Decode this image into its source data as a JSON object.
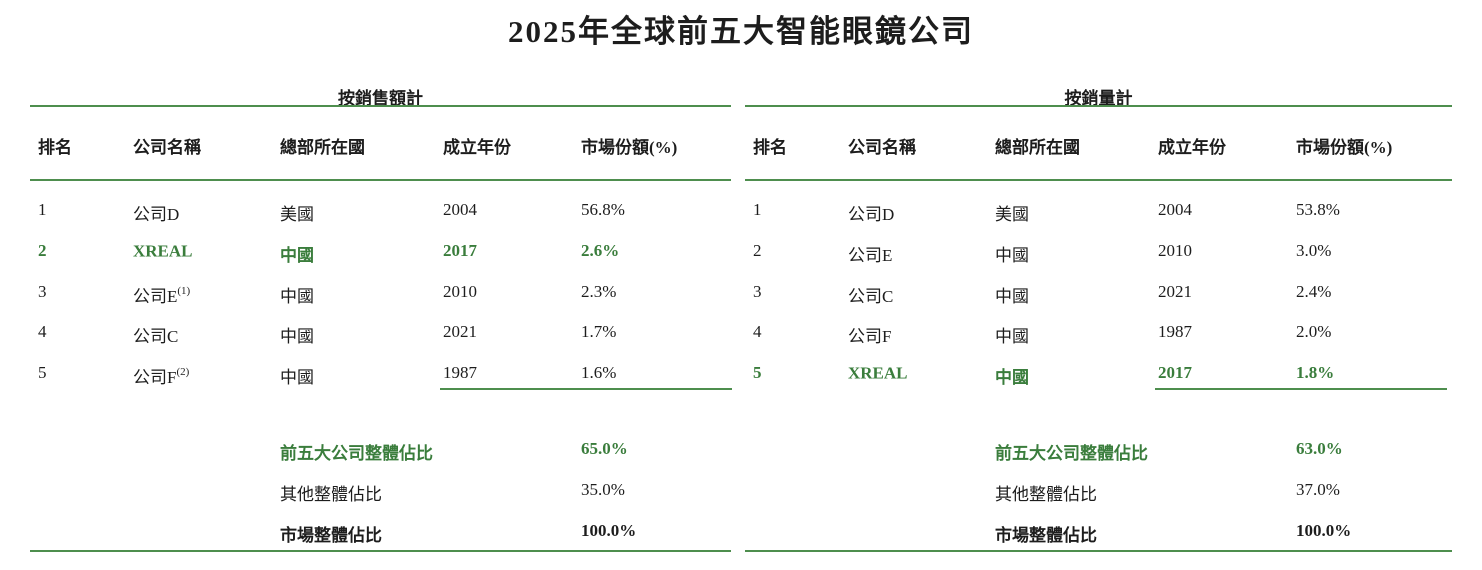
{
  "title": "2025年全球前五大智能眼鏡公司",
  "colors": {
    "green_text": "#3a7d3c",
    "green_line": "#4e8e4e"
  },
  "columns": [
    "排名",
    "公司名稱",
    "總部所在國",
    "成立年份",
    "市場份額(%)"
  ],
  "tables": [
    {
      "group_title": "按銷售額計",
      "rows": [
        {
          "rank": "1",
          "company": "公司D",
          "sup": "",
          "country": "美國",
          "year": "2004",
          "share": "56.8%",
          "highlight": false
        },
        {
          "rank": "2",
          "company": "XREAL",
          "sup": "",
          "country": "中國",
          "year": "2017",
          "share": "2.6%",
          "highlight": true
        },
        {
          "rank": "3",
          "company": "公司E",
          "sup": "(1)",
          "country": "中國",
          "year": "2010",
          "share": "2.3%",
          "highlight": false
        },
        {
          "rank": "4",
          "company": "公司C",
          "sup": "",
          "country": "中國",
          "year": "2021",
          "share": "1.7%",
          "highlight": false
        },
        {
          "rank": "5",
          "company": "公司F",
          "sup": "(2)",
          "country": "中國",
          "year": "1987",
          "share": "1.6%",
          "highlight": false
        }
      ],
      "summary": [
        {
          "label": "前五大公司整體佔比",
          "value": "65.0%"
        },
        {
          "label": "其他整體佔比",
          "value": "35.0%"
        },
        {
          "label": "市場整體佔比",
          "value": "100.0%"
        }
      ]
    },
    {
      "group_title": "按銷量計",
      "rows": [
        {
          "rank": "1",
          "company": "公司D",
          "sup": "",
          "country": "美國",
          "year": "2004",
          "share": "53.8%",
          "highlight": false
        },
        {
          "rank": "2",
          "company": "公司E",
          "sup": "",
          "country": "中國",
          "year": "2010",
          "share": "3.0%",
          "highlight": false
        },
        {
          "rank": "3",
          "company": "公司C",
          "sup": "",
          "country": "中國",
          "year": "2021",
          "share": "2.4%",
          "highlight": false
        },
        {
          "rank": "4",
          "company": "公司F",
          "sup": "",
          "country": "中國",
          "year": "1987",
          "share": "2.0%",
          "highlight": false
        },
        {
          "rank": "5",
          "company": "XREAL",
          "sup": "",
          "country": "中國",
          "year": "2017",
          "share": "1.8%",
          "highlight": true
        }
      ],
      "summary": [
        {
          "label": "前五大公司整體佔比",
          "value": "63.0%"
        },
        {
          "label": "其他整體佔比",
          "value": "37.0%"
        },
        {
          "label": "市場整體佔比",
          "value": "100.0%"
        }
      ]
    }
  ]
}
